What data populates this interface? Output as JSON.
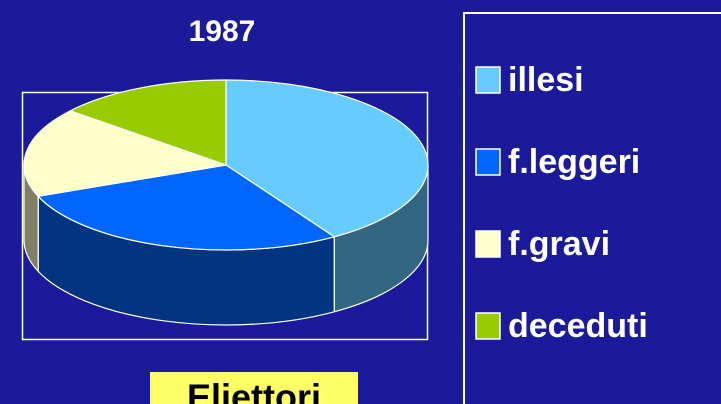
{
  "chart_data": {
    "type": "pie",
    "title": "1987",
    "categories": [
      "illesi",
      "f.leggeri",
      "f.gravi",
      "deceduti"
    ],
    "values": [
      41,
      28,
      17,
      14
    ],
    "colors": [
      "#66ccff",
      "#0066ff",
      "#ffffcc",
      "#99cc00"
    ],
    "legend": "right"
  },
  "footer": "Eliettori"
}
